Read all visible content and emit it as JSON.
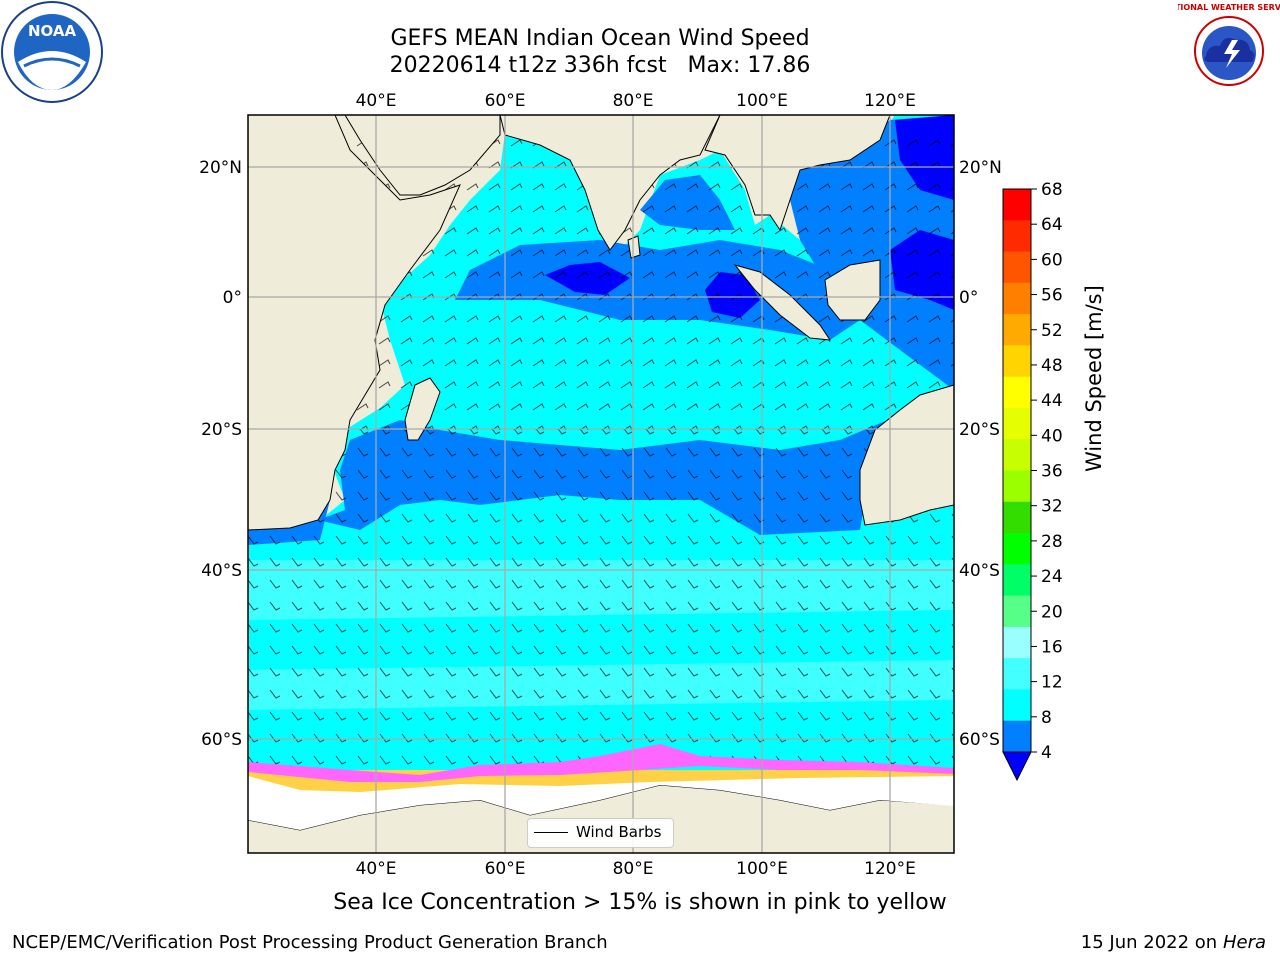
{
  "title": {
    "line1": "GEFS MEAN Indian Ocean Wind Speed",
    "line2": "20220614 t12z 336h fcst   Max: 17.86"
  },
  "map": {
    "lon_labels": [
      "40°E",
      "60°E",
      "80°E",
      "100°E",
      "120°E"
    ],
    "lat_labels": [
      "20°N",
      "0°",
      "20°S",
      "40°S",
      "60°S"
    ],
    "colors": {
      "land": "#efedd9",
      "deep_blue": "#0000ff",
      "blue": "#0080ff",
      "cyan": "#00ffff",
      "light_cyan": "#40ffff",
      "sea_ice_pink": "#ff66ff",
      "sea_ice_yellow": "#ffcc33",
      "ice_white": "#ffffff"
    },
    "legend": {
      "label": "Wind Barbs"
    }
  },
  "colorbar": {
    "label": "Wind Speed [m/s]",
    "ticks": [
      "68",
      "64",
      "60",
      "56",
      "52",
      "48",
      "44",
      "40",
      "36",
      "32",
      "28",
      "24",
      "20",
      "16",
      "12",
      "8",
      "4"
    ],
    "colors_top_to_bottom": [
      "#ff0000",
      "#ff2a00",
      "#ff5500",
      "#ff7f00",
      "#ffaa00",
      "#ffd400",
      "#ffff00",
      "#e6ff00",
      "#c8ff00",
      "#9bff00",
      "#33dd00",
      "#00ff00",
      "#00ff66",
      "#55ff88",
      "#99ffff",
      "#44ffff",
      "#00ffff",
      "#0080ff"
    ],
    "extend_color": "#0000ff"
  },
  "logos": {
    "left": {
      "text": "NOAA"
    },
    "right": {
      "text": "NATIONAL WEATHER SERVICE"
    }
  },
  "caption": "Sea Ice Concentration > 15% is shown in pink to yellow",
  "footer": {
    "left": "NCEP/EMC/Verification Post Processing Product Generation Branch",
    "right_prefix": "15 Jun 2022 on",
    "right_host": "Hera"
  }
}
